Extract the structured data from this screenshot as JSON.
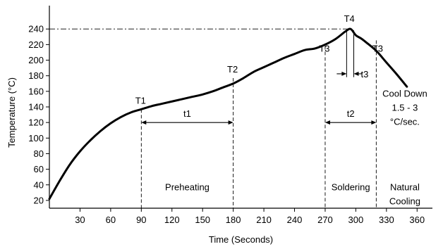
{
  "chart_data": {
    "type": "line",
    "title": "",
    "xlabel": "Time (Seconds)",
    "ylabel": "Temperature (°C)",
    "xlim": [
      0,
      375
    ],
    "ylim": [
      10,
      270
    ],
    "x_ticks": [
      30,
      60,
      90,
      120,
      150,
      180,
      210,
      240,
      270,
      300,
      330,
      360
    ],
    "y_ticks": [
      20,
      40,
      60,
      80,
      100,
      120,
      140,
      160,
      180,
      200,
      220,
      240
    ],
    "grid": false,
    "series": [
      {
        "x": [
          0,
          10,
          20,
          30,
          40,
          50,
          60,
          70,
          80,
          90,
          100,
          110,
          120,
          130,
          140,
          150,
          160,
          170,
          180,
          190,
          200,
          210,
          220,
          230,
          240,
          250,
          260,
          270,
          280,
          290,
          295,
          300,
          305,
          310,
          320,
          330,
          340,
          350
        ],
        "y": [
          22,
          45,
          66,
          83,
          97,
          109,
          119,
          127,
          133,
          137,
          141,
          144,
          147,
          150,
          153,
          156,
          160,
          165,
          170,
          177,
          185,
          191,
          197,
          203,
          208,
          213,
          215,
          220,
          227,
          237,
          240,
          232,
          228,
          223,
          212,
          197,
          182,
          166
        ]
      }
    ],
    "annotations": {
      "peak_label": "T4",
      "t3_left_label": "T3",
      "t3_right_label": "T3",
      "t1_label": "T1",
      "t2_label": "T2",
      "span_t1_label": "t1",
      "span_t2_label": "t2",
      "span_t3_label": "t3",
      "preheating_label": "Preheating",
      "soldering_label": "Soldering",
      "cool_down_line1": "Cool Down",
      "cool_down_line2": "1.5 - 3",
      "cool_down_line3": "°C/sec.",
      "natural_cooling_line1": "Natural",
      "natural_cooling_line2": "Cooling",
      "t1_x": 90,
      "t1_y": 137,
      "t2_x": 180,
      "t2_y": 177,
      "t3_left_x": 270,
      "t3_right_x": 320,
      "t3_y": 220,
      "peak_x": 295,
      "peak_y": 240,
      "t3_span_x": [
        291,
        298
      ],
      "span_y": 120
    }
  }
}
